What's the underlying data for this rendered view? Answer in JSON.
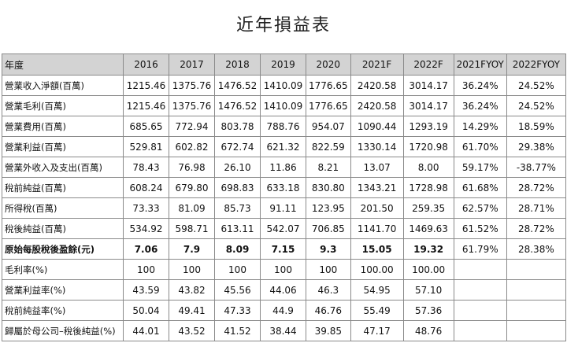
{
  "title": "近年損益表",
  "table": {
    "headers": [
      "年度",
      "2016",
      "2017",
      "2018",
      "2019",
      "2020",
      "2021F",
      "2022F",
      "2021FYOY",
      "2022FYOY"
    ],
    "rows": [
      {
        "label": "營業收入淨額(百萬)",
        "bold": false,
        "values": [
          "1215.46",
          "1375.76",
          "1476.52",
          "1410.09",
          "1776.65",
          "2420.58",
          "3014.17",
          "36.24%",
          "24.52%"
        ]
      },
      {
        "label": "營業毛利(百萬)",
        "bold": false,
        "values": [
          "1215.46",
          "1375.76",
          "1476.52",
          "1410.09",
          "1776.65",
          "2420.58",
          "3014.17",
          "36.24%",
          "24.52%"
        ]
      },
      {
        "label": "營業費用(百萬)",
        "bold": false,
        "values": [
          "685.65",
          "772.94",
          "803.78",
          "788.76",
          "954.07",
          "1090.44",
          "1293.19",
          "14.29%",
          "18.59%"
        ]
      },
      {
        "label": "營業利益(百萬)",
        "bold": false,
        "values": [
          "529.81",
          "602.82",
          "672.74",
          "621.32",
          "822.59",
          "1330.14",
          "1720.98",
          "61.70%",
          "29.38%"
        ]
      },
      {
        "label": "營業外收入及支出(百萬)",
        "bold": false,
        "values": [
          "78.43",
          "76.98",
          "26.10",
          "11.86",
          "8.21",
          "13.07",
          "8.00",
          "59.17%",
          "-38.77%"
        ]
      },
      {
        "label": "稅前純益(百萬)",
        "bold": false,
        "values": [
          "608.24",
          "679.80",
          "698.83",
          "633.18",
          "830.80",
          "1343.21",
          "1728.98",
          "61.68%",
          "28.72%"
        ]
      },
      {
        "label": "所得稅(百萬)",
        "bold": false,
        "values": [
          "73.33",
          "81.09",
          "85.73",
          "91.11",
          "123.95",
          "201.50",
          "259.35",
          "62.57%",
          "28.71%"
        ]
      },
      {
        "label": "稅後純益(百萬)",
        "bold": false,
        "values": [
          "534.92",
          "598.71",
          "613.11",
          "542.07",
          "706.85",
          "1141.70",
          "1469.63",
          "61.52%",
          "28.72%"
        ]
      },
      {
        "label": "原始每股稅後盈餘(元)",
        "bold": true,
        "values": [
          "7.06",
          "7.9",
          "8.09",
          "7.15",
          "9.3",
          "15.05",
          "19.32",
          "61.79%",
          "28.38%"
        ]
      },
      {
        "label": "毛利率(%)",
        "bold": false,
        "values": [
          "100",
          "100",
          "100",
          "100",
          "100",
          "100.00",
          "100.00",
          "",
          ""
        ]
      },
      {
        "label": "營業利益率(%)",
        "bold": false,
        "values": [
          "43.59",
          "43.82",
          "45.56",
          "44.06",
          "46.3",
          "54.95",
          "57.10",
          "",
          ""
        ]
      },
      {
        "label": "稅前純益率(%)",
        "bold": false,
        "values": [
          "50.04",
          "49.41",
          "47.33",
          "44.9",
          "46.76",
          "55.49",
          "57.36",
          "",
          ""
        ]
      },
      {
        "label": "歸屬於母公司–稅後純益(%)",
        "bold": false,
        "values": [
          "44.01",
          "43.52",
          "41.52",
          "38.44",
          "39.85",
          "47.17",
          "48.76",
          "",
          ""
        ]
      }
    ]
  }
}
